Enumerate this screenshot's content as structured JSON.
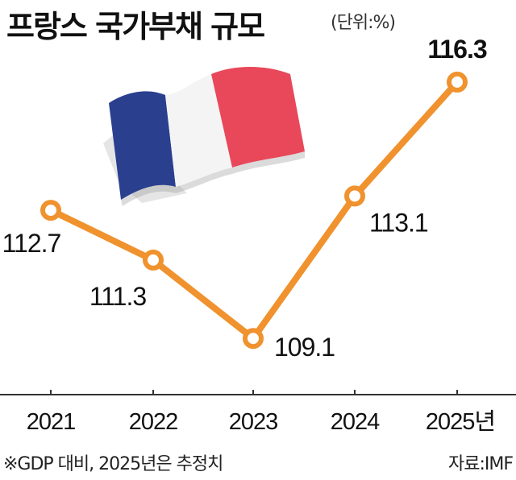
{
  "title": "프랑스 국가부채 규모",
  "unit": "(단위:%)",
  "footnote": "※GDP 대비, 2025년은 추정치",
  "source": "자료:IMF",
  "colors": {
    "line": "#f0922e",
    "marker_fill": "#ffffff",
    "axis": "#333333",
    "flag_blue": "#2b3f8f",
    "flag_white": "#f4f4f4",
    "flag_red": "#e8485a"
  },
  "decoration": "france-flag-icon",
  "chart_data": {
    "type": "line",
    "x": [
      "2021",
      "2022",
      "2023",
      "2024",
      "2025년"
    ],
    "series": [
      {
        "values": [
          112.7,
          111.3,
          109.1,
          113.1,
          116.3
        ]
      }
    ],
    "value_labels": [
      "112.7",
      "111.3",
      "109.1",
      "113.1",
      "116.3"
    ],
    "ylim": [
      106.3,
      117.7
    ],
    "title": "프랑스 국가부채 규모",
    "xlabel": "",
    "ylabel": "",
    "grid": false
  }
}
